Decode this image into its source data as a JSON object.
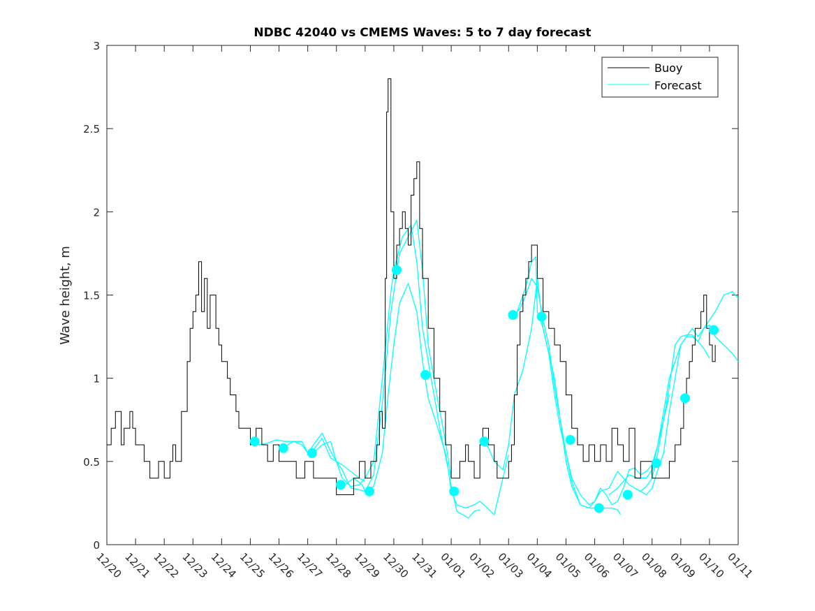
{
  "chart_data": {
    "type": "line",
    "title": "NDBC 42040 vs CMEMS Waves: 5 to 7 day forecast",
    "xlabel": "",
    "ylabel": "Wave height, m",
    "xlim": [
      0,
      22
    ],
    "ylim": [
      0,
      3
    ],
    "yticks": [
      0,
      0.5,
      1,
      1.5,
      2,
      2.5,
      3
    ],
    "ytick_labels": [
      "0",
      "0.5",
      "1",
      "1.5",
      "2",
      "2.5",
      "3"
    ],
    "xtick_labels": [
      "12/20",
      "12/21",
      "12/22",
      "12/23",
      "12/24",
      "12/25",
      "12/26",
      "12/27",
      "12/28",
      "12/29",
      "12/30",
      "12/31",
      "01/01",
      "01/02",
      "01/03",
      "01/04",
      "01/05",
      "01/06",
      "01/07",
      "01/08",
      "01/09",
      "01/10",
      "01/11"
    ],
    "legend": {
      "position": "top-right",
      "entries": [
        "Buoy",
        "Forecast"
      ]
    },
    "colors": {
      "buoy": "#000000",
      "forecast": "#00ffff",
      "markers": "#00ffff",
      "axes": "#262626"
    },
    "buoy": {
      "x": [
        0,
        0.15,
        0.3,
        0.5,
        0.6,
        0.8,
        0.9,
        1.0,
        1.1,
        1.3,
        1.5,
        1.6,
        1.8,
        2.0,
        2.2,
        2.3,
        2.4,
        2.6,
        2.8,
        2.9,
        3.0,
        3.1,
        3.2,
        3.3,
        3.4,
        3.5,
        3.6,
        3.8,
        3.9,
        4.0,
        4.2,
        4.3,
        4.5,
        4.6,
        4.8,
        5.0,
        5.2,
        5.4,
        5.6,
        5.8,
        6.0,
        6.3,
        6.6,
        6.9,
        7.2,
        7.5,
        7.8,
        8.0,
        8.2,
        8.4,
        8.6,
        8.8,
        9.0,
        9.2,
        9.4,
        9.5,
        9.6,
        9.7,
        9.75,
        9.8,
        9.9,
        10.0,
        10.1,
        10.2,
        10.3,
        10.4,
        10.5,
        10.6,
        10.7,
        10.8,
        10.9,
        11.0,
        11.2,
        11.4,
        11.6,
        11.8,
        12.0,
        12.1,
        12.3,
        12.5,
        12.6,
        12.8,
        13.0,
        13.1,
        13.3,
        13.5,
        13.6,
        13.8,
        13.9,
        14.0,
        14.1,
        14.2,
        14.3,
        14.4,
        14.5,
        14.6,
        14.7,
        14.8,
        14.9,
        15.0,
        15.2,
        15.4,
        15.6,
        15.8,
        16.0,
        16.2,
        16.4,
        16.6,
        16.8,
        17.0,
        17.2,
        17.4,
        17.6,
        17.8,
        18.0,
        18.2,
        18.4,
        18.6,
        18.8,
        19.0,
        19.2,
        19.4,
        19.6,
        19.8,
        20.0,
        20.1,
        20.2,
        20.3,
        20.4,
        20.5,
        20.6,
        20.7,
        20.8,
        20.9,
        21.0,
        21.1,
        21.2
      ],
      "y": [
        0.6,
        0.7,
        0.8,
        0.6,
        0.7,
        0.8,
        0.7,
        0.6,
        0.6,
        0.5,
        0.4,
        0.4,
        0.5,
        0.4,
        0.5,
        0.6,
        0.5,
        0.8,
        1.1,
        1.3,
        1.4,
        1.5,
        1.7,
        1.4,
        1.6,
        1.3,
        1.5,
        1.3,
        1.2,
        1.1,
        1.0,
        0.9,
        0.8,
        0.7,
        0.7,
        0.6,
        0.7,
        0.6,
        0.5,
        0.6,
        0.5,
        0.5,
        0.4,
        0.5,
        0.4,
        0.4,
        0.4,
        0.3,
        0.3,
        0.3,
        0.4,
        0.5,
        0.4,
        0.5,
        0.6,
        0.8,
        0.7,
        1.6,
        2.6,
        2.8,
        2.0,
        1.6,
        1.8,
        1.9,
        2.0,
        1.9,
        1.8,
        2.1,
        2.2,
        2.3,
        1.9,
        1.6,
        1.3,
        1.0,
        0.8,
        0.6,
        0.4,
        0.4,
        0.5,
        0.6,
        0.5,
        0.4,
        0.6,
        0.7,
        0.6,
        0.5,
        0.4,
        0.4,
        0.4,
        0.5,
        0.6,
        0.9,
        1.2,
        1.4,
        1.5,
        1.6,
        1.7,
        1.8,
        1.8,
        1.6,
        1.4,
        1.3,
        1.2,
        1.1,
        0.9,
        0.7,
        0.6,
        0.5,
        0.6,
        0.5,
        0.6,
        0.5,
        0.7,
        0.6,
        0.5,
        0.7,
        0.4,
        0.5,
        0.5,
        0.4,
        0.4,
        0.4,
        0.5,
        0.6,
        0.7,
        0.9,
        1.0,
        1.1,
        1.2,
        1.3,
        1.3,
        1.4,
        1.5,
        1.3,
        1.2,
        1.1,
        1.2
      ]
    },
    "forecast": [
      {
        "name": "run-1",
        "x": [
          5.0,
          5.3,
          5.6,
          5.9,
          6.2,
          6.5,
          6.8,
          7.0,
          7.2,
          7.5,
          7.8,
          8.0,
          8.2,
          8.5,
          8.8,
          9.0
        ],
        "y": [
          0.62,
          0.6,
          0.61,
          0.63,
          0.62,
          0.62,
          0.6,
          0.55,
          0.57,
          0.64,
          0.52,
          0.5,
          0.48,
          0.44,
          0.4,
          0.38
        ]
      },
      {
        "name": "run-2",
        "x": [
          6.1,
          6.5,
          6.8,
          7.0,
          7.2,
          7.5,
          7.8,
          8.0,
          8.2,
          8.5,
          8.8,
          9.0,
          9.3,
          9.6,
          9.9,
          10.0
        ],
        "y": [
          0.58,
          0.62,
          0.62,
          0.55,
          0.6,
          0.67,
          0.56,
          0.5,
          0.4,
          0.35,
          0.36,
          0.4,
          0.5,
          1.0,
          1.52,
          1.65
        ]
      },
      {
        "name": "run-3",
        "x": [
          7.2,
          7.5,
          7.8,
          8.0,
          8.2,
          8.5,
          8.8,
          9.0,
          9.3,
          9.6,
          9.9,
          10.2,
          10.5,
          10.8,
          11.0,
          11.2,
          11.5,
          11.8,
          12.0
        ],
        "y": [
          0.55,
          0.6,
          0.62,
          0.5,
          0.45,
          0.34,
          0.33,
          0.32,
          0.42,
          0.85,
          1.4,
          1.75,
          1.85,
          1.95,
          1.65,
          1.2,
          0.9,
          0.62,
          0.4
        ]
      },
      {
        "name": "run-4",
        "x": [
          8.3,
          8.6,
          8.9,
          9.0,
          9.3,
          9.6,
          9.8,
          10.0,
          10.2,
          10.5,
          10.8,
          11.0,
          11.2,
          11.5,
          11.8,
          12.0,
          12.2,
          12.4,
          12.6,
          12.8,
          13.0
        ],
        "y": [
          0.36,
          0.4,
          0.36,
          0.32,
          0.35,
          0.55,
          0.9,
          1.2,
          1.45,
          1.57,
          1.4,
          1.1,
          0.88,
          0.72,
          0.55,
          0.35,
          0.2,
          0.18,
          0.16,
          0.2,
          0.21
        ]
      },
      {
        "name": "run-5",
        "x": [
          10.0,
          10.3,
          10.6,
          10.8,
          11.0,
          11.3,
          11.6,
          11.9,
          12.0,
          12.2,
          12.5,
          12.8,
          13.0,
          13.2,
          13.5,
          13.8,
          14.0
        ],
        "y": [
          1.65,
          1.85,
          1.92,
          1.7,
          1.3,
          1.0,
          0.7,
          0.45,
          0.32,
          0.24,
          0.22,
          0.24,
          0.26,
          0.23,
          0.18,
          0.4,
          0.54
        ]
      },
      {
        "name": "run-6",
        "x": [
          13.0,
          13.2,
          13.5,
          13.8,
          14.0,
          14.2,
          14.5,
          14.8,
          15.0,
          15.2,
          15.4,
          15.6,
          15.8,
          16.0,
          16.2,
          16.5,
          16.8,
          17.0,
          17.2,
          17.4,
          17.6,
          17.8,
          17.9
        ],
        "y": [
          0.62,
          0.62,
          0.5,
          0.45,
          0.6,
          0.9,
          1.05,
          1.3,
          1.6,
          1.3,
          1.15,
          1.0,
          0.75,
          0.5,
          0.35,
          0.24,
          0.22,
          0.22,
          0.22,
          0.22,
          0.22,
          0.21,
          0.18
        ]
      },
      {
        "name": "run-7",
        "x": [
          14.0,
          14.2,
          14.4,
          14.6,
          14.8,
          15.0,
          15.2,
          15.4,
          15.6,
          15.8,
          16.0,
          16.2,
          16.5,
          16.8,
          17.0,
          17.2,
          17.4,
          17.6,
          17.8,
          18.0,
          18.2,
          18.4,
          18.6,
          18.8,
          19.0,
          19.2,
          19.4,
          19.6
        ],
        "y": [
          1.38,
          1.38,
          1.42,
          1.5,
          1.6,
          1.55,
          1.35,
          1.2,
          0.95,
          0.75,
          0.55,
          0.38,
          0.24,
          0.22,
          0.26,
          0.34,
          0.3,
          0.24,
          0.26,
          0.34,
          0.45,
          0.46,
          0.42,
          0.44,
          0.48,
          0.6,
          0.75,
          0.9
        ]
      },
      {
        "name": "run-8",
        "x": [
          14.3,
          14.6,
          14.8,
          14.95,
          15.0,
          15.2,
          15.4,
          15.6,
          15.8,
          16.0,
          16.2,
          16.5,
          16.8,
          17.0,
          17.2,
          17.5,
          17.8,
          18.0,
          18.2,
          18.4,
          18.6,
          18.8,
          19.0,
          19.2,
          19.4,
          19.6,
          19.8,
          20.0,
          20.2,
          20.4,
          20.6,
          20.8,
          21.0
        ],
        "y": [
          1.4,
          1.55,
          1.7,
          1.73,
          1.4,
          1.3,
          1.15,
          0.9,
          0.7,
          0.55,
          0.4,
          0.3,
          0.24,
          0.26,
          0.32,
          0.34,
          0.44,
          0.4,
          0.36,
          0.34,
          0.32,
          0.35,
          0.4,
          0.55,
          0.75,
          0.95,
          1.2,
          1.25,
          1.26,
          1.26,
          1.22,
          1.18,
          1.12
        ]
      },
      {
        "name": "run-9",
        "x": [
          17.5,
          17.8,
          18.0,
          18.2,
          18.5,
          18.8,
          19.0,
          19.2,
          19.4,
          19.6,
          19.8,
          20.0,
          20.2,
          20.4,
          20.6,
          20.8,
          21.0,
          21.2,
          21.5,
          21.8,
          22.0
        ],
        "y": [
          0.3,
          0.34,
          0.38,
          0.42,
          0.4,
          0.4,
          0.45,
          0.6,
          0.8,
          1.0,
          1.1,
          1.2,
          1.25,
          1.3,
          1.25,
          1.3,
          1.35,
          1.4,
          1.5,
          1.52,
          1.48
        ]
      },
      {
        "name": "run-10",
        "x": [
          18.4,
          18.6,
          18.8,
          19.0,
          19.2,
          19.4,
          19.6,
          19.8,
          20.0,
          20.2,
          20.4,
          20.6,
          20.8,
          21.0,
          21.2,
          21.5,
          21.8,
          22.0
        ],
        "y": [
          0.34,
          0.32,
          0.3,
          0.34,
          0.45,
          0.55,
          0.8,
          1.0,
          1.2,
          1.25,
          1.25,
          1.22,
          1.3,
          1.32,
          1.25,
          1.2,
          1.15,
          1.1
        ]
      }
    ],
    "markers": {
      "x": [
        5.15,
        6.15,
        7.15,
        8.15,
        9.15,
        10.1,
        11.1,
        12.1,
        13.15,
        14.15,
        15.15,
        16.15,
        17.15,
        18.15,
        19.15,
        20.15,
        21.15
      ],
      "y": [
        0.62,
        0.58,
        0.55,
        0.36,
        0.32,
        1.65,
        1.02,
        0.32,
        0.62,
        1.38,
        1.37,
        0.63,
        0.22,
        0.3,
        0.49,
        0.88,
        1.29
      ]
    }
  }
}
